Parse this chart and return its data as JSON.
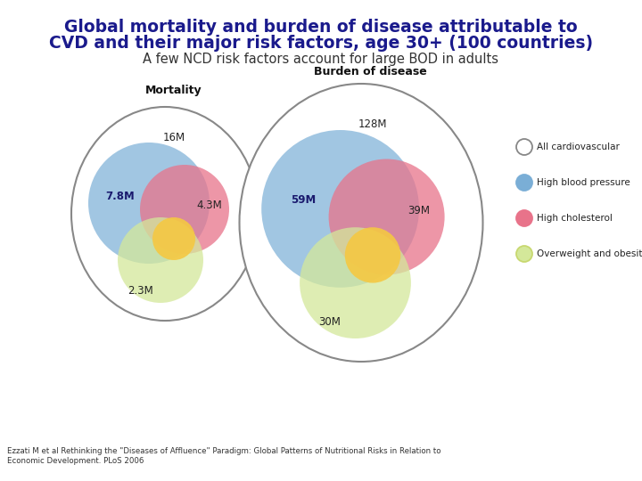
{
  "title_line1": "Global mortality and burden of disease attributable to",
  "title_line2": "CVD and their major risk factors, age 30+ (100 countries)",
  "subtitle": "A few NCD risk factors account for large BOD in adults",
  "title_color": "#1a1a8c",
  "subtitle_color": "#333333",
  "footer": "Ezzati M et al Rethinking the \"Diseases of Affluence\" Paradigm: Global Patterns of Nutritional Risks in Relation to\nEconomic Development. PLoS 2006",
  "diagram1_title": "Mortality",
  "diagram2_title": "Burden of disease",
  "mortality": {
    "outer_label": "16M",
    "blue_label": "7.8M",
    "red_label": "4.3M",
    "green_label": "2.3M"
  },
  "burden": {
    "outer_label": "128M",
    "blue_label": "59M",
    "red_label": "39M",
    "green_label": "30M"
  },
  "colors": {
    "outer": "#ffffff",
    "outer_edge": "#888888",
    "blue": "#7aaed6",
    "red": "#e8738a",
    "green": "#d4e89a",
    "orange": "#f5c842"
  },
  "legend_labels": [
    "All cardiovascular",
    "High blood pressure",
    "High cholesterol",
    "Overweight and obesity"
  ],
  "legend_colors": [
    "#ffffff",
    "#7aaed6",
    "#e8738a",
    "#d4e89a"
  ],
  "legend_edge_colors": [
    "#888888",
    "#7aaed6",
    "#e8738a",
    "#c8d870"
  ]
}
